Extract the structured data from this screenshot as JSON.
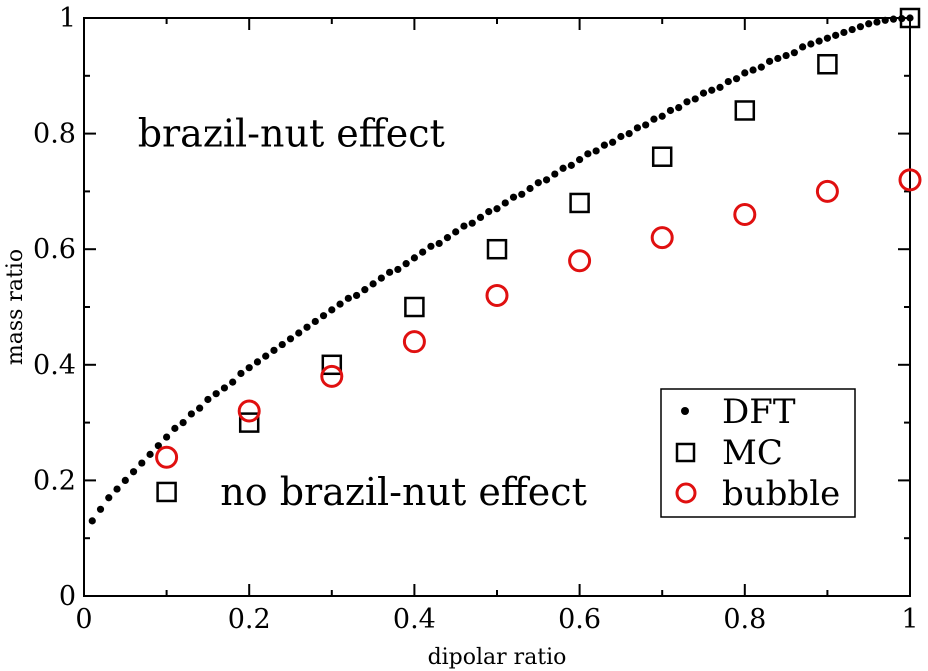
{
  "chart_data": {
    "type": "scatter",
    "title": "",
    "xlabel": "dipolar ratio",
    "ylabel": "mass ratio",
    "xlim": [
      0,
      1
    ],
    "ylim": [
      0,
      1
    ],
    "x_ticks": [
      0,
      0.2,
      0.4,
      0.6,
      0.8,
      1
    ],
    "x_tick_labels": [
      "0",
      "0.2",
      "0.4",
      "0.6",
      "0.8",
      "1"
    ],
    "y_ticks": [
      0,
      0.2,
      0.4,
      0.6,
      0.8,
      1
    ],
    "y_tick_labels": [
      "0",
      "0.2",
      "0.4",
      "0.6",
      "0.8",
      "1"
    ],
    "grid": false,
    "legend_position": "bottom-right",
    "series": [
      {
        "name": "DFT",
        "marker": "dot",
        "color": "#000000",
        "x": [
          0.01,
          0.02,
          0.03,
          0.04,
          0.05,
          0.06,
          0.07,
          0.08,
          0.09,
          0.1,
          0.11,
          0.12,
          0.13,
          0.14,
          0.15,
          0.16,
          0.17,
          0.18,
          0.19,
          0.2,
          0.21,
          0.22,
          0.23,
          0.24,
          0.25,
          0.26,
          0.27,
          0.28,
          0.29,
          0.3,
          0.31,
          0.32,
          0.33,
          0.34,
          0.35,
          0.36,
          0.37,
          0.38,
          0.39,
          0.4,
          0.41,
          0.42,
          0.43,
          0.44,
          0.45,
          0.46,
          0.47,
          0.48,
          0.49,
          0.5,
          0.51,
          0.52,
          0.53,
          0.54,
          0.55,
          0.56,
          0.57,
          0.58,
          0.59,
          0.6,
          0.61,
          0.62,
          0.63,
          0.64,
          0.65,
          0.66,
          0.67,
          0.68,
          0.69,
          0.7,
          0.71,
          0.72,
          0.73,
          0.74,
          0.75,
          0.76,
          0.77,
          0.78,
          0.79,
          0.8,
          0.81,
          0.82,
          0.83,
          0.84,
          0.85,
          0.86,
          0.87,
          0.88,
          0.89,
          0.9,
          0.91,
          0.92,
          0.93,
          0.94,
          0.95,
          0.96,
          0.97,
          0.98,
          0.99,
          1.0
        ],
        "y": [
          0.13,
          0.15,
          0.17,
          0.185,
          0.2,
          0.215,
          0.23,
          0.245,
          0.26,
          0.275,
          0.29,
          0.3,
          0.315,
          0.325,
          0.34,
          0.35,
          0.36,
          0.37,
          0.385,
          0.395,
          0.405,
          0.415,
          0.425,
          0.435,
          0.445,
          0.455,
          0.465,
          0.475,
          0.485,
          0.495,
          0.505,
          0.515,
          0.52,
          0.53,
          0.54,
          0.55,
          0.56,
          0.565,
          0.575,
          0.585,
          0.595,
          0.605,
          0.61,
          0.62,
          0.63,
          0.64,
          0.645,
          0.655,
          0.665,
          0.67,
          0.68,
          0.69,
          0.695,
          0.705,
          0.715,
          0.72,
          0.73,
          0.74,
          0.745,
          0.755,
          0.765,
          0.77,
          0.78,
          0.785,
          0.795,
          0.8,
          0.81,
          0.815,
          0.825,
          0.83,
          0.84,
          0.845,
          0.855,
          0.86,
          0.87,
          0.875,
          0.88,
          0.89,
          0.895,
          0.905,
          0.91,
          0.915,
          0.925,
          0.93,
          0.935,
          0.94,
          0.95,
          0.955,
          0.96,
          0.965,
          0.97,
          0.975,
          0.98,
          0.985,
          0.99,
          0.993,
          0.996,
          0.998,
          0.999,
          1.0
        ]
      },
      {
        "name": "MC",
        "marker": "square",
        "color": "#000000",
        "x": [
          0.1,
          0.2,
          0.3,
          0.4,
          0.5,
          0.6,
          0.7,
          0.8,
          0.9,
          1.0
        ],
        "y": [
          0.18,
          0.3,
          0.4,
          0.5,
          0.6,
          0.68,
          0.76,
          0.84,
          0.92,
          1.0
        ]
      },
      {
        "name": "bubble",
        "marker": "circle",
        "color": "#e01010",
        "x": [
          0.1,
          0.2,
          0.3,
          0.4,
          0.5,
          0.6,
          0.7,
          0.8,
          0.9,
          1.0
        ],
        "y": [
          0.24,
          0.32,
          0.38,
          0.44,
          0.52,
          0.58,
          0.62,
          0.66,
          0.7,
          0.72
        ]
      }
    ],
    "annotations": [
      {
        "text": "brazil-nut effect",
        "x": 0.065,
        "y": 0.8
      },
      {
        "text": "no brazil-nut effect",
        "x": 0.165,
        "y": 0.18
      }
    ]
  }
}
